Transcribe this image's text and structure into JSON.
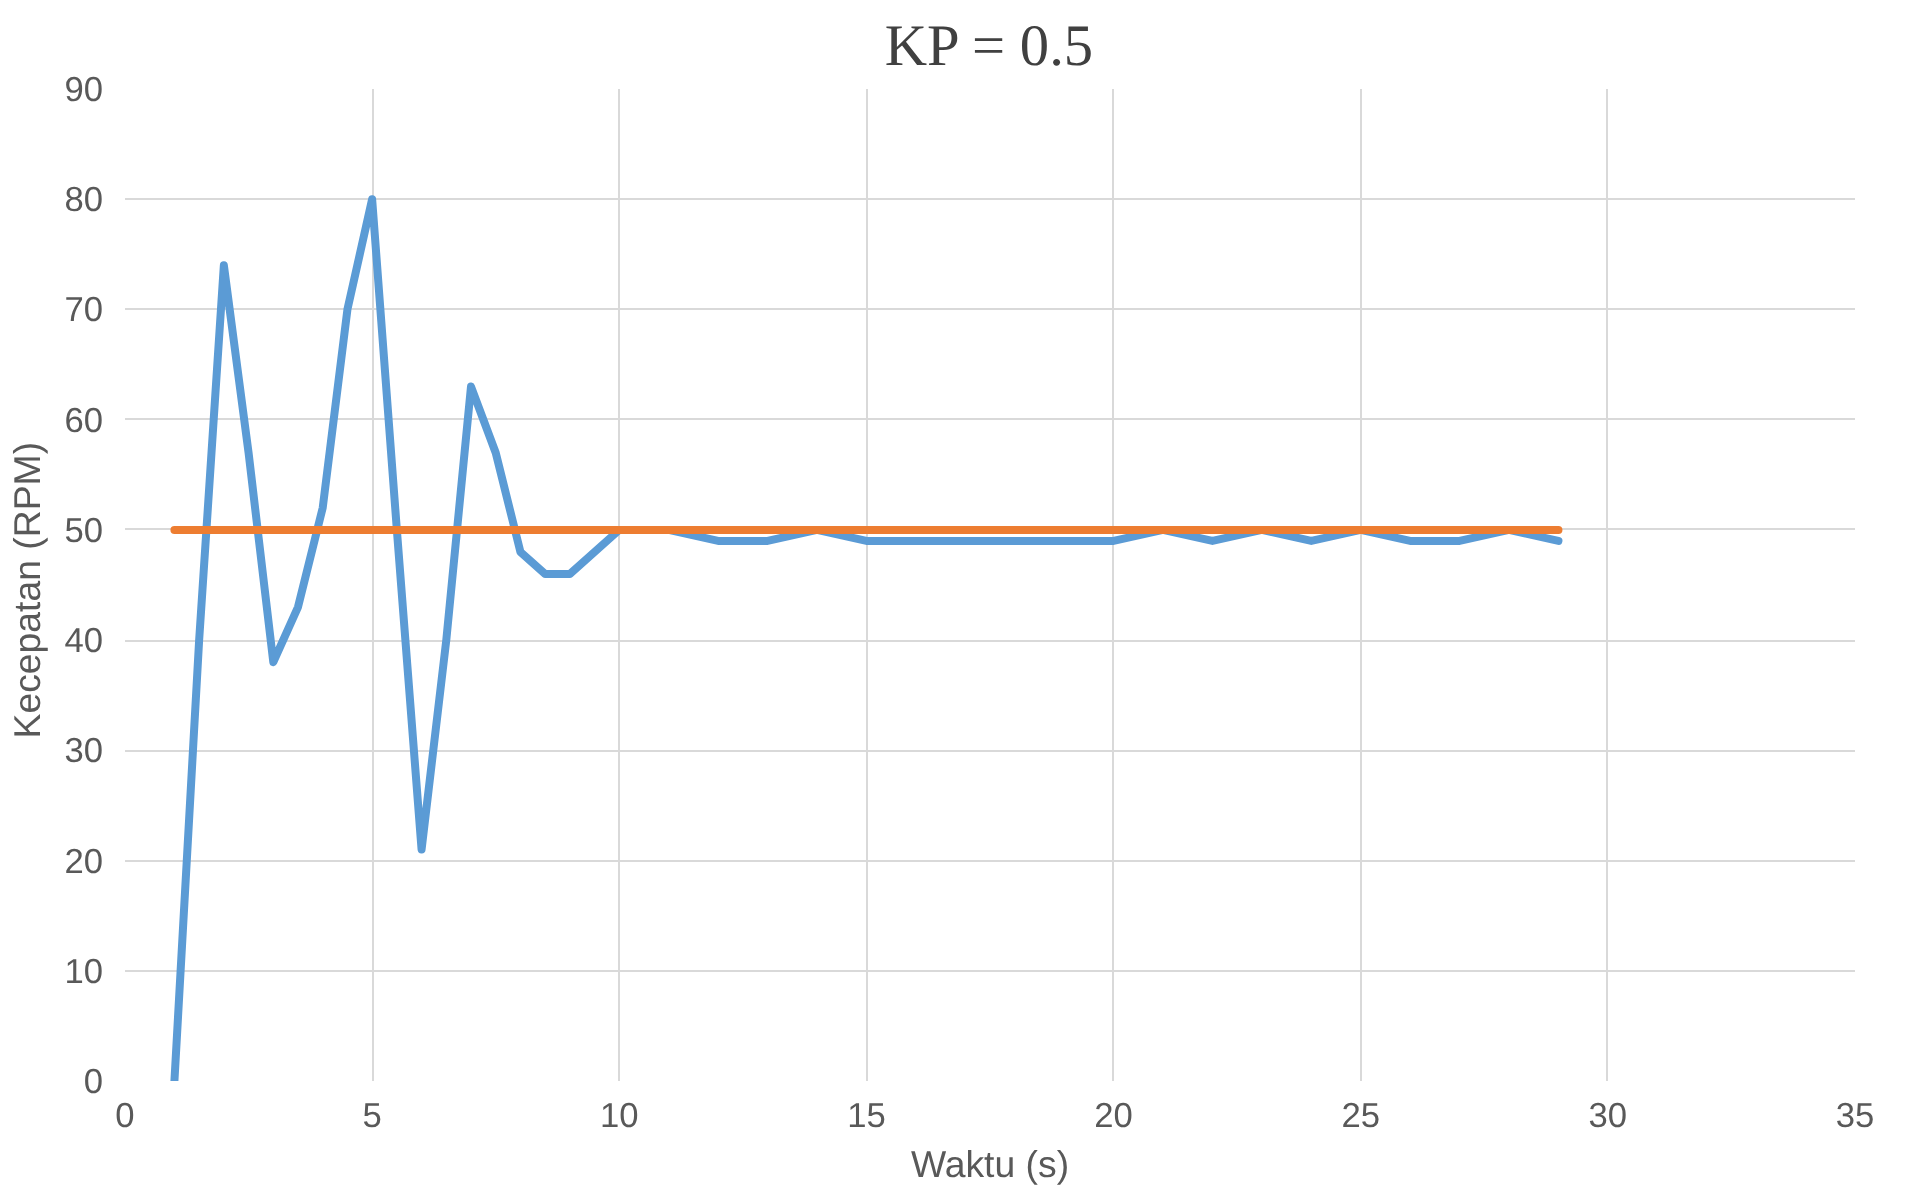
{
  "chart_data": {
    "type": "line",
    "title": "KP = 0.5",
    "xlabel": "Waktu (s)",
    "ylabel": "Kecepatan  (RPM)",
    "xlim": [
      0,
      35
    ],
    "xticks": [
      0,
      5,
      10,
      15,
      20,
      25,
      30,
      35
    ],
    "ylim": [
      0,
      90
    ],
    "yticks": [
      0,
      10,
      20,
      30,
      40,
      50,
      60,
      70,
      80,
      90
    ],
    "grid": true,
    "marker": "none",
    "line_style": "solid",
    "series": [
      {
        "color": "#5b9bd5",
        "x": [
          1,
          1.5,
          2,
          2.5,
          3,
          3.5,
          4,
          4.5,
          5,
          5.5,
          6,
          6.5,
          7,
          7.5,
          8,
          8.5,
          9,
          10,
          11,
          12,
          13,
          14,
          15,
          16,
          17,
          18,
          19,
          20,
          21,
          22,
          23,
          24,
          25,
          26,
          27,
          28,
          29
        ],
        "values": [
          0,
          40,
          74,
          57,
          38,
          43,
          52,
          70,
          80,
          50,
          21,
          40,
          63,
          57,
          48,
          46,
          46,
          50,
          50,
          49,
          49,
          50,
          49,
          49,
          49,
          49,
          49,
          49,
          50,
          49,
          50,
          49,
          50,
          49,
          49,
          50,
          49
        ]
      },
      {
        "color": "#ed7d31",
        "x": [
          1,
          29
        ],
        "values": [
          50,
          50
        ]
      }
    ]
  }
}
